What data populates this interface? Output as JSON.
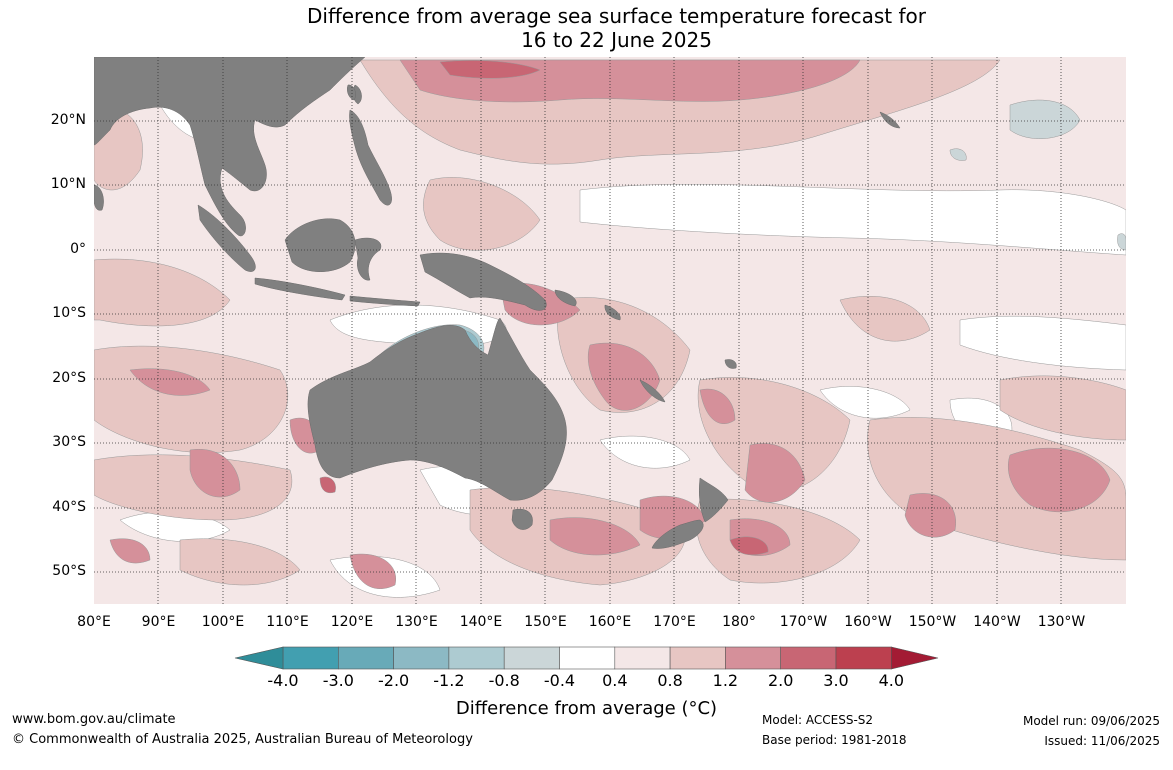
{
  "title": {
    "line1": "Difference from average sea surface temperature forecast for",
    "line2": "16 to 22 June 2025"
  },
  "latitude_labels": [
    "20°N",
    "10°N",
    "0°",
    "10°S",
    "20°S",
    "30°S",
    "40°S",
    "50°S"
  ],
  "longitude_labels": [
    "80°E",
    "90°E",
    "100°E",
    "110°E",
    "120°E",
    "130°E",
    "140°E",
    "150°E",
    "160°E",
    "170°E",
    "180°",
    "170°W",
    "160°W",
    "150°W",
    "140°W",
    "130°W"
  ],
  "colorbar": {
    "ticks": [
      "-4.0",
      "-3.0",
      "-2.0",
      "-1.2",
      "-0.8",
      "-0.4",
      "0.4",
      "0.8",
      "1.2",
      "2.0",
      "3.0",
      "4.0"
    ],
    "colors": {
      "below_min": "#2f8d99",
      "bins": [
        "#429fb0",
        "#68aab8",
        "#8cb9c4",
        "#adcbd1",
        "#cbd6d8",
        "#ffffff",
        "#f4e7e7",
        "#e7c6c3",
        "#d5909a",
        "#c86674",
        "#bc404f"
      ],
      "above_max": "#a31b34"
    },
    "title": "Difference from average (°C)"
  },
  "colors": {
    "land": "#808080",
    "ocean_base": "#f4e7e7",
    "contour_line": "#888888",
    "grid": "#333333"
  },
  "footer": {
    "website": "www.bom.gov.au/climate",
    "copyright": "© Commonwealth of Australia 2025, Australian Bureau of Meteorology",
    "model": "Model: ACCESS-S2",
    "base_period": "Base period: 1981-2018",
    "model_run": "Model run: 09/06/2025",
    "issued": "Issued: 11/06/2025"
  }
}
